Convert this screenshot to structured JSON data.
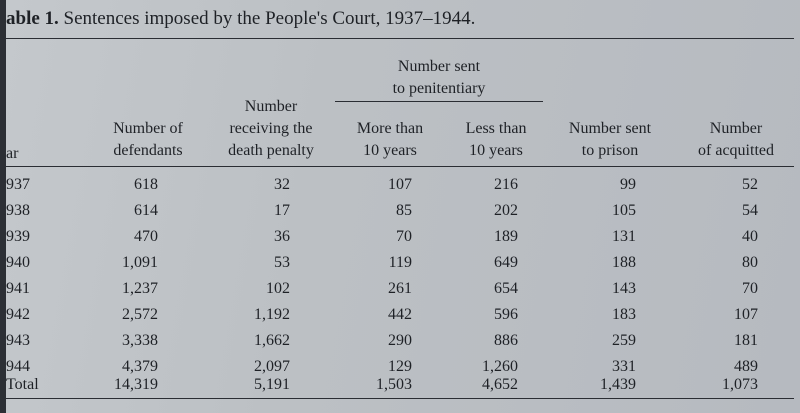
{
  "caption": {
    "label": "able 1.",
    "title": "Sentences imposed by the People's Court, 1937–1944."
  },
  "headers": {
    "year": "ar",
    "defendants": [
      "Number of",
      "defendants"
    ],
    "death": [
      "Number",
      "receiving the",
      "death penalty"
    ],
    "penitentiary_group": [
      "Number sent",
      "to penitentiary"
    ],
    "more_than": [
      "More than",
      "10 years"
    ],
    "less_than": [
      "Less than",
      "10 years"
    ],
    "prison": [
      "Number sent",
      "to prison"
    ],
    "acquitted": [
      "Number",
      "of acquitted"
    ]
  },
  "rows": [
    {
      "year": "937",
      "defendants": "618",
      "death": "32",
      "more": "107",
      "less": "216",
      "prison": "99",
      "acquitted": "52"
    },
    {
      "year": "938",
      "defendants": "614",
      "death": "17",
      "more": "85",
      "less": "202",
      "prison": "105",
      "acquitted": "54"
    },
    {
      "year": "939",
      "defendants": "470",
      "death": "36",
      "more": "70",
      "less": "189",
      "prison": "131",
      "acquitted": "40"
    },
    {
      "year": "940",
      "defendants": "1,091",
      "death": "53",
      "more": "119",
      "less": "649",
      "prison": "188",
      "acquitted": "80"
    },
    {
      "year": "941",
      "defendants": "1,237",
      "death": "102",
      "more": "261",
      "less": "654",
      "prison": "143",
      "acquitted": "70"
    },
    {
      "year": "942",
      "defendants": "2,572",
      "death": "1,192",
      "more": "442",
      "less": "596",
      "prison": "183",
      "acquitted": "107"
    },
    {
      "year": "943",
      "defendants": "3,338",
      "death": "1,662",
      "more": "290",
      "less": "886",
      "prison": "259",
      "acquitted": "181"
    },
    {
      "year": "944",
      "defendants": "4,379",
      "death": "2,097",
      "more": "129",
      "less": "1,260",
      "prison": "331",
      "acquitted": "489"
    },
    {
      "year": "Total",
      "defendants": "14,319",
      "death": "5,191",
      "more": "1,503",
      "less": "4,652",
      "prison": "1,439",
      "acquitted": "1,073"
    }
  ]
}
